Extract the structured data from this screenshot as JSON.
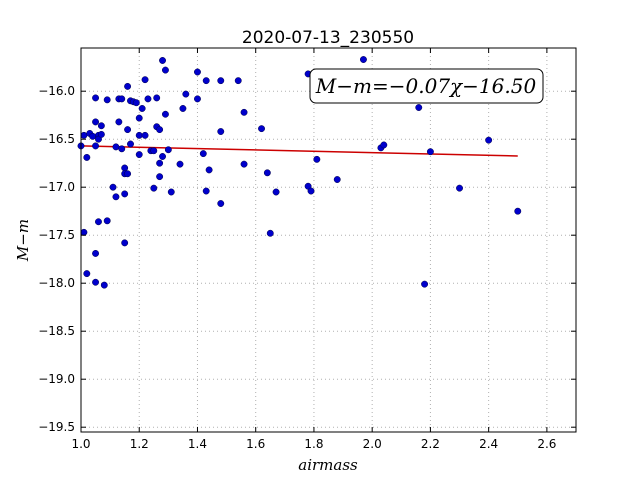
{
  "chart_data": {
    "type": "scatter",
    "title": "2020-07-13_230550",
    "xlabel": "airmass",
    "ylabel": "M−m",
    "xlim": [
      1.0,
      2.7
    ],
    "ylim": [
      -19.55,
      -15.55
    ],
    "y_inverted": false,
    "grid": true,
    "x_ticks": [
      1.0,
      1.2,
      1.4,
      1.6,
      1.8,
      2.0,
      2.2,
      2.4,
      2.6
    ],
    "x_tick_labels": [
      "1.0",
      "1.2",
      "1.4",
      "1.6",
      "1.8",
      "2.0",
      "2.2",
      "2.4",
      "2.6"
    ],
    "y_ticks": [
      -19.5,
      -19.0,
      -18.5,
      -18.0,
      -17.5,
      -17.0,
      -16.5,
      -16.0
    ],
    "y_tick_labels": [
      "−19.5",
      "−19.0",
      "−18.5",
      "−18.0",
      "−17.5",
      "−17.0",
      "−16.5",
      "−16.0"
    ],
    "annotation": "M−m=−0.07χ−16.50",
    "annotation_position": "top-right",
    "colors": {
      "points": "#0000cc",
      "fit": "#cc0000",
      "grid": "#b0b0b0"
    },
    "fit": {
      "slope": -0.07,
      "intercept": -16.5,
      "x_range": [
        1.0,
        2.5
      ]
    },
    "series": [
      {
        "kind": "points",
        "points": [
          [
            1.0,
            -16.57
          ],
          [
            1.01,
            -16.46
          ],
          [
            1.01,
            -17.47
          ],
          [
            1.02,
            -16.69
          ],
          [
            1.02,
            -17.9
          ],
          [
            1.03,
            -16.44
          ],
          [
            1.04,
            -16.47
          ],
          [
            1.05,
            -16.32
          ],
          [
            1.05,
            -16.57
          ],
          [
            1.05,
            -17.69
          ],
          [
            1.05,
            -17.99
          ],
          [
            1.05,
            -16.07
          ],
          [
            1.06,
            -16.46
          ],
          [
            1.06,
            -16.5
          ],
          [
            1.06,
            -17.36
          ],
          [
            1.07,
            -16.45
          ],
          [
            1.07,
            -16.36
          ],
          [
            1.08,
            -18.02
          ],
          [
            1.09,
            -17.35
          ],
          [
            1.09,
            -16.09
          ],
          [
            1.11,
            -17.0
          ],
          [
            1.12,
            -16.58
          ],
          [
            1.12,
            -17.1
          ],
          [
            1.13,
            -16.32
          ],
          [
            1.13,
            -16.08
          ],
          [
            1.14,
            -16.08
          ],
          [
            1.14,
            -16.6
          ],
          [
            1.15,
            -16.8
          ],
          [
            1.15,
            -16.86
          ],
          [
            1.15,
            -17.07
          ],
          [
            1.15,
            -17.58
          ],
          [
            1.16,
            -16.4
          ],
          [
            1.16,
            -16.86
          ],
          [
            1.16,
            -15.95
          ],
          [
            1.17,
            -16.55
          ],
          [
            1.17,
            -16.1
          ],
          [
            1.18,
            -16.11
          ],
          [
            1.19,
            -16.12
          ],
          [
            1.2,
            -16.28
          ],
          [
            1.2,
            -16.66
          ],
          [
            1.2,
            -16.46
          ],
          [
            1.21,
            -16.18
          ],
          [
            1.22,
            -15.88
          ],
          [
            1.22,
            -16.46
          ],
          [
            1.23,
            -16.08
          ],
          [
            1.24,
            -16.62
          ],
          [
            1.25,
            -16.62
          ],
          [
            1.25,
            -17.01
          ],
          [
            1.26,
            -16.07
          ],
          [
            1.26,
            -16.37
          ],
          [
            1.27,
            -16.4
          ],
          [
            1.27,
            -16.75
          ],
          [
            1.27,
            -16.89
          ],
          [
            1.28,
            -16.68
          ],
          [
            1.28,
            -15.68
          ],
          [
            1.29,
            -15.78
          ],
          [
            1.29,
            -16.24
          ],
          [
            1.3,
            -16.61
          ],
          [
            1.31,
            -17.05
          ],
          [
            1.34,
            -16.76
          ],
          [
            1.35,
            -16.18
          ],
          [
            1.36,
            -16.03
          ],
          [
            1.4,
            -15.8
          ],
          [
            1.4,
            -16.08
          ],
          [
            1.42,
            -16.65
          ],
          [
            1.43,
            -15.89
          ],
          [
            1.43,
            -17.04
          ],
          [
            1.44,
            -16.82
          ],
          [
            1.48,
            -15.89
          ],
          [
            1.48,
            -16.42
          ],
          [
            1.48,
            -17.17
          ],
          [
            1.54,
            -15.89
          ],
          [
            1.56,
            -16.76
          ],
          [
            1.56,
            -16.22
          ],
          [
            1.62,
            -16.39
          ],
          [
            1.64,
            -16.85
          ],
          [
            1.65,
            -17.48
          ],
          [
            1.67,
            -17.05
          ],
          [
            1.78,
            -15.82
          ],
          [
            1.78,
            -16.99
          ],
          [
            1.79,
            -17.04
          ],
          [
            1.81,
            -16.71
          ],
          [
            1.88,
            -16.92
          ],
          [
            1.97,
            -15.67
          ],
          [
            2.03,
            -16.59
          ],
          [
            2.04,
            -16.56
          ],
          [
            2.16,
            -16.17
          ],
          [
            2.18,
            -18.01
          ],
          [
            2.2,
            -16.63
          ],
          [
            2.3,
            -17.01
          ],
          [
            2.4,
            -16.51
          ],
          [
            2.5,
            -17.25
          ]
        ]
      }
    ]
  }
}
